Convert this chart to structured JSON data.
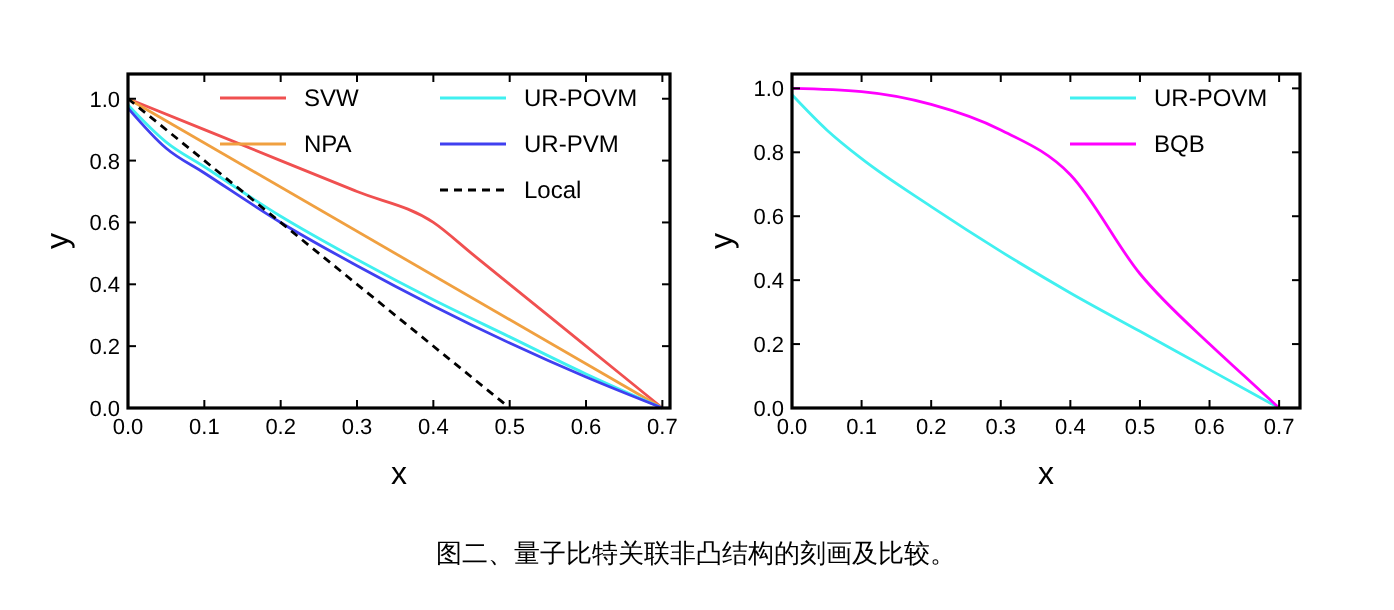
{
  "chart_data": [
    {
      "type": "line",
      "xlabel": "x",
      "ylabel": "y",
      "xlim": [
        0,
        0.71
      ],
      "ylim": [
        0,
        1.08
      ],
      "xticks": [
        {
          "value": 0,
          "label": "0.0"
        },
        {
          "value": 0.1,
          "label": "0.1"
        },
        {
          "value": 0.2,
          "label": "0.2"
        },
        {
          "value": 0.3,
          "label": "0.3"
        },
        {
          "value": 0.4,
          "label": "0.4"
        },
        {
          "value": 0.5,
          "label": "0.5"
        },
        {
          "value": 0.6,
          "label": "0.6"
        },
        {
          "value": 0.7,
          "label": "0.7"
        }
      ],
      "yticks": [
        {
          "value": 0,
          "label": "0.0"
        },
        {
          "value": 0.2,
          "label": "0.2"
        },
        {
          "value": 0.4,
          "label": "0.4"
        },
        {
          "value": 0.6,
          "label": "0.6"
        },
        {
          "value": 0.8,
          "label": "0.8"
        },
        {
          "value": 1,
          "label": "1.0"
        }
      ],
      "legend": "top right",
      "annotations": [
        "图二、量子比特关联非凸结构的刻画及比较。"
      ],
      "series": [
        {
          "name": "SVW",
          "color": "#f05050",
          "x": [
            0,
            0.1,
            0.2,
            0.3,
            0.4,
            0.45,
            0.5,
            0.6,
            0.7
          ],
          "values": [
            1,
            0.9,
            0.8,
            0.7,
            0.6,
            0.5,
            0.4,
            0.2,
            0
          ]
        },
        {
          "name": "NPA",
          "color": "#f0a040",
          "x": [
            0,
            0.7
          ],
          "values": [
            1,
            0
          ]
        },
        {
          "name": "UR-POVM",
          "color": "#40f0f0",
          "x": [
            0,
            0.05,
            0.1,
            0.2,
            0.3,
            0.4,
            0.5,
            0.6,
            0.7
          ],
          "values": [
            0.98,
            0.86,
            0.78,
            0.62,
            0.48,
            0.35,
            0.23,
            0.11,
            0
          ]
        },
        {
          "name": "UR-PVM",
          "color": "#4040f0",
          "x": [
            0,
            0.05,
            0.1,
            0.2,
            0.3,
            0.4,
            0.5,
            0.6,
            0.7
          ],
          "values": [
            0.97,
            0.84,
            0.76,
            0.6,
            0.46,
            0.33,
            0.21,
            0.1,
            0
          ]
        },
        {
          "name": "Local",
          "color": "#000000",
          "line_style": "dashed",
          "x": [
            0,
            0.5
          ],
          "values": [
            1,
            0
          ]
        }
      ]
    },
    {
      "type": "line",
      "xlabel": "x",
      "ylabel": "y",
      "xlim": [
        0,
        0.73
      ],
      "ylim": [
        0,
        1.045
      ],
      "xticks": [
        {
          "value": 0,
          "label": "0.0"
        },
        {
          "value": 0.1,
          "label": "0.1"
        },
        {
          "value": 0.2,
          "label": "0.2"
        },
        {
          "value": 0.3,
          "label": "0.3"
        },
        {
          "value": 0.4,
          "label": "0.4"
        },
        {
          "value": 0.5,
          "label": "0.5"
        },
        {
          "value": 0.6,
          "label": "0.6"
        },
        {
          "value": 0.7,
          "label": "0.7"
        }
      ],
      "yticks": [
        {
          "value": 0,
          "label": "0.0"
        },
        {
          "value": 0.2,
          "label": "0.2"
        },
        {
          "value": 0.4,
          "label": "0.4"
        },
        {
          "value": 0.6,
          "label": "0.6"
        },
        {
          "value": 0.8,
          "label": "0.8"
        },
        {
          "value": 1,
          "label": "1.0"
        }
      ],
      "legend": "top right",
      "series": [
        {
          "name": "UR-POVM",
          "color": "#40f0f0",
          "x": [
            0,
            0.05,
            0.1,
            0.2,
            0.3,
            0.4,
            0.5,
            0.6,
            0.7
          ],
          "values": [
            0.98,
            0.87,
            0.78,
            0.63,
            0.49,
            0.36,
            0.24,
            0.12,
            0
          ]
        },
        {
          "name": "BQB",
          "color": "#ff00ff",
          "x": [
            0,
            0.1,
            0.2,
            0.3,
            0.4,
            0.5,
            0.6,
            0.65,
            0.7
          ],
          "values": [
            1,
            0.99,
            0.95,
            0.87,
            0.73,
            0.42,
            0.2,
            0.1,
            0
          ]
        }
      ]
    }
  ]
}
